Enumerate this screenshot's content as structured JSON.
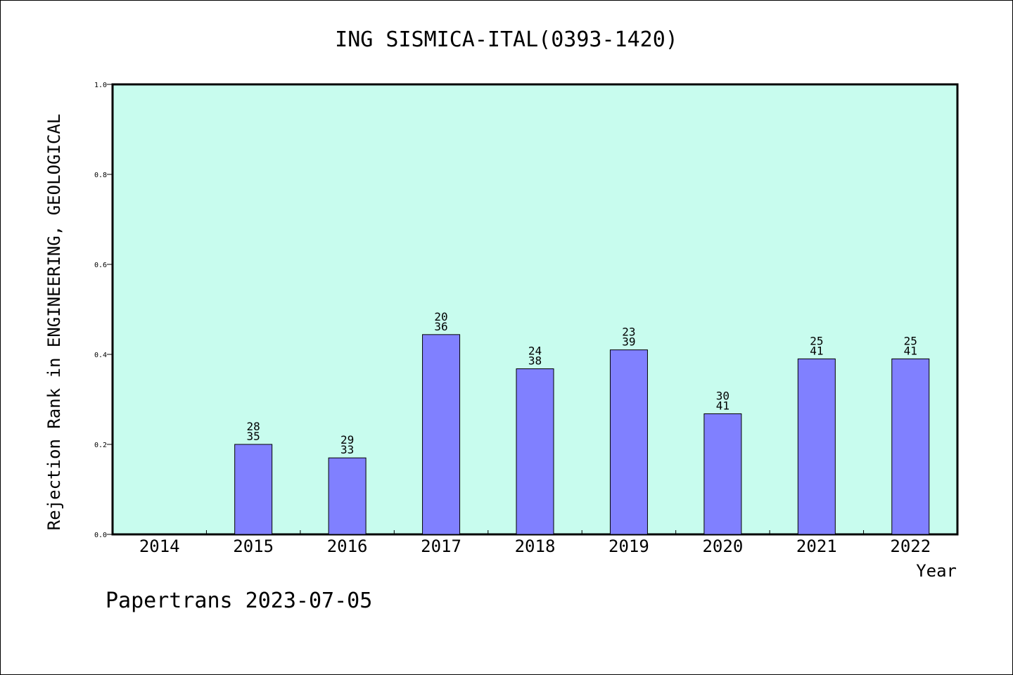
{
  "chart_data": {
    "type": "bar",
    "title": "ING SISMICA-ITAL(0393-1420)",
    "xlabel": "Year",
    "ylabel": "Rejection Rank in ENGINEERING, GEOLOGICAL",
    "ylim": [
      0,
      1.0
    ],
    "yticks": [
      "0.0",
      "0.2",
      "0.4",
      "0.6",
      "0.8",
      "1.0"
    ],
    "categories": [
      "2014",
      "2015",
      "2016",
      "2017",
      "2018",
      "2019",
      "2020",
      "2021",
      "2022"
    ],
    "values": [
      null,
      0.2,
      0.17,
      0.444,
      0.368,
      0.41,
      0.268,
      0.39,
      0.39
    ],
    "labels_top": [
      "",
      "28",
      "29",
      "20",
      "24",
      "23",
      "30",
      "25",
      "25"
    ],
    "labels_bottom": [
      "",
      "35",
      "33",
      "36",
      "38",
      "39",
      "41",
      "41",
      "41"
    ],
    "grid": false,
    "background_color": "#c8fcee",
    "bar_color": "#8080ff"
  },
  "footer": "Papertrans 2023-07-05"
}
